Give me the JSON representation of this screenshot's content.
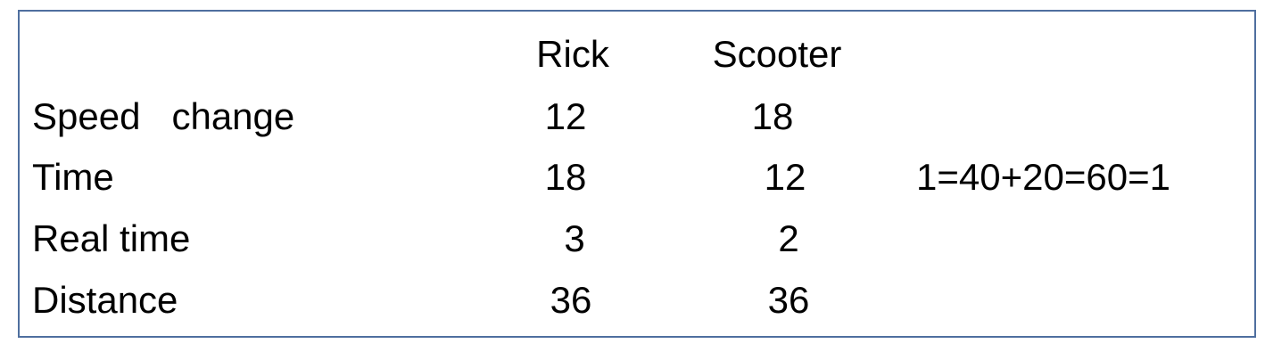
{
  "table": {
    "columns": [
      "Rick",
      "Scooter"
    ],
    "rows": [
      {
        "label": "Speed   change",
        "rick": "12",
        "scooter": "18"
      },
      {
        "label": "Time",
        "rick": "18",
        "scooter": "12"
      },
      {
        "label": "Real time",
        "rick": "3",
        "scooter": "2"
      },
      {
        "label": "Distance",
        "rick": "36",
        "scooter": "36"
      }
    ]
  },
  "equation": "1=40+20=60=1",
  "colors": {
    "border": "#4f6f9f"
  }
}
